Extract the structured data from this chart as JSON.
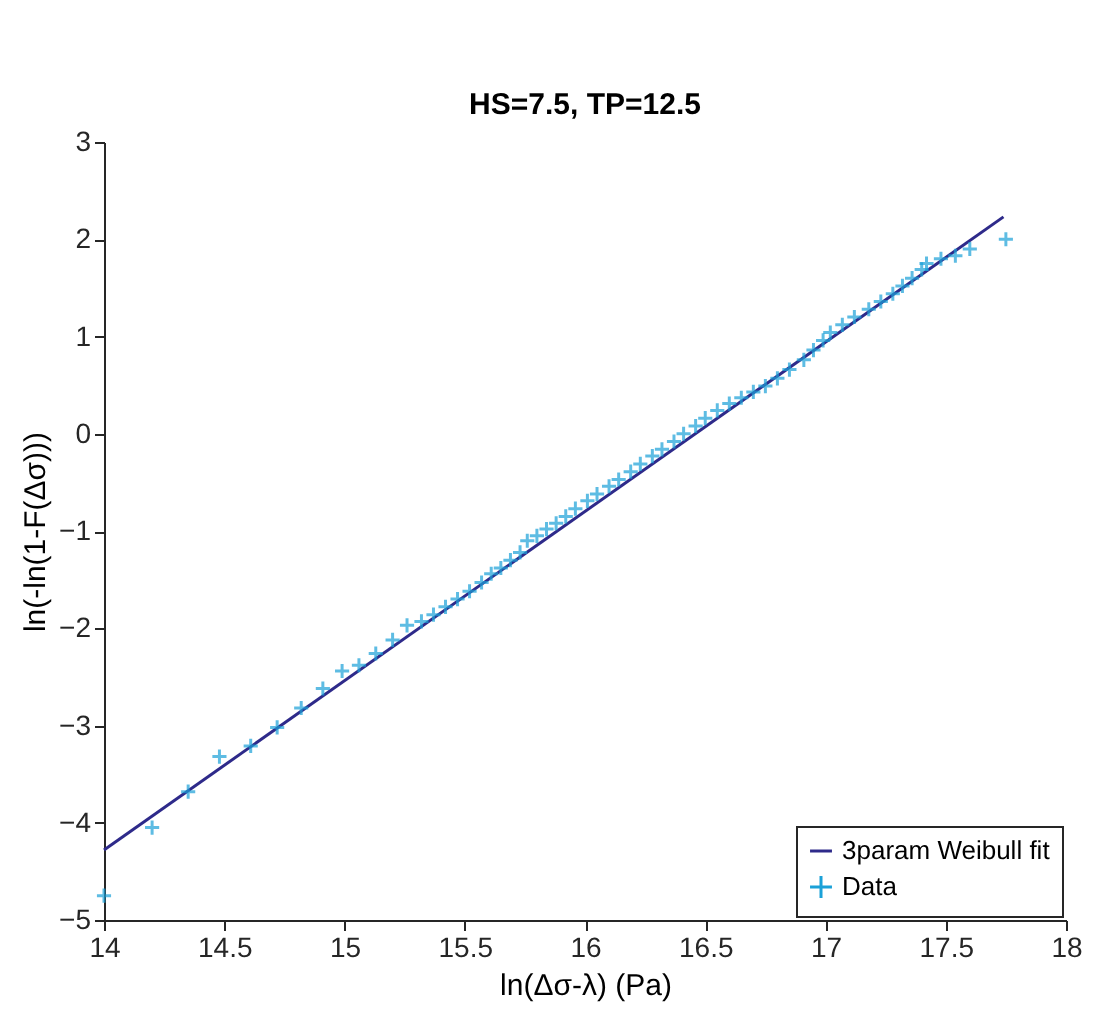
{
  "chart_data": {
    "type": "scatter",
    "title": "HS=7.5, TP=12.5",
    "xlabel": "ln(Δσ-λ) (Pa)",
    "ylabel": "ln(-ln(1-F(Δσ)))",
    "xlim": [
      14,
      18
    ],
    "ylim": [
      -5,
      3
    ],
    "xticks": [
      14,
      14.5,
      15,
      15.5,
      16,
      16.5,
      17,
      17.5,
      18
    ],
    "yticks": [
      -5,
      -4,
      -3,
      -2,
      -1,
      0,
      1,
      2,
      3
    ],
    "grid": false,
    "legend": "bottom right",
    "series": [
      {
        "name": "3param Weibull fit",
        "type": "line",
        "color": "#2e2a8a",
        "line_style": "solid",
        "x": [
          14,
          17.74
        ],
        "values": [
          -4.28,
          2.23
        ]
      },
      {
        "name": "Data",
        "marker": "cross",
        "color": "#1ba1d8",
        "x": [
          14.0,
          14.2,
          14.35,
          14.48,
          14.61,
          14.72,
          14.82,
          14.91,
          14.99,
          15.06,
          15.13,
          15.2,
          15.26,
          15.32,
          15.37,
          15.42,
          15.47,
          15.52,
          15.57,
          15.61,
          15.65,
          15.69,
          15.73,
          15.76,
          15.8,
          15.84,
          15.88,
          15.92,
          15.96,
          16.01,
          16.05,
          16.1,
          16.14,
          16.19,
          16.23,
          16.28,
          16.32,
          16.37,
          16.41,
          16.46,
          16.5,
          16.55,
          16.6,
          16.65,
          16.7,
          16.75,
          16.8,
          16.85,
          16.91,
          16.95,
          16.99,
          17.02,
          17.07,
          17.12,
          17.18,
          17.23,
          17.28,
          17.32,
          17.36,
          17.4,
          17.42,
          17.48,
          17.54,
          17.6,
          17.75
        ],
        "values": [
          -4.75,
          -4.05,
          -3.68,
          -3.32,
          -3.21,
          -3.02,
          -2.82,
          -2.62,
          -2.44,
          -2.38,
          -2.26,
          -2.12,
          -1.97,
          -1.93,
          -1.86,
          -1.78,
          -1.7,
          -1.62,
          -1.53,
          -1.44,
          -1.38,
          -1.3,
          -1.22,
          -1.1,
          -1.05,
          -0.98,
          -0.92,
          -0.85,
          -0.77,
          -0.69,
          -0.62,
          -0.54,
          -0.47,
          -0.39,
          -0.31,
          -0.23,
          -0.16,
          -0.08,
          0.0,
          0.08,
          0.16,
          0.24,
          0.31,
          0.37,
          0.43,
          0.49,
          0.57,
          0.66,
          0.76,
          0.86,
          0.96,
          1.04,
          1.12,
          1.2,
          1.28,
          1.36,
          1.44,
          1.52,
          1.6,
          1.69,
          1.75,
          1.8,
          1.83,
          1.9,
          2.0
        ]
      }
    ]
  }
}
